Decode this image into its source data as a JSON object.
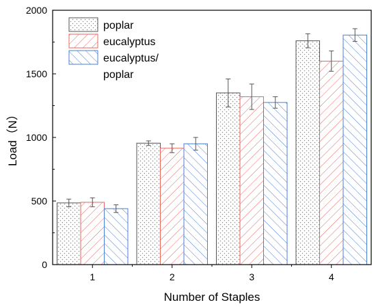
{
  "chart_data": {
    "type": "bar",
    "title": "",
    "xlabel": "Number of Staples",
    "ylabel": "Load（N）",
    "categories": [
      "1",
      "2",
      "3",
      "4"
    ],
    "ylim": [
      0,
      2000
    ],
    "yticks": [
      "0",
      "500",
      "1000",
      "1500",
      "2000"
    ],
    "grid": false,
    "legend_position": "top-left",
    "series": [
      {
        "name": "poplar",
        "legend_lines": [
          "poplar"
        ],
        "pattern": "dots",
        "color": "#555555",
        "values": [
          485,
          955,
          1350,
          1760
        ],
        "errors": [
          30,
          18,
          110,
          55
        ]
      },
      {
        "name": "eucalyptus",
        "legend_lines": [
          "eucalyptus"
        ],
        "pattern": "hatch-forward",
        "color": "#e8665f",
        "values": [
          490,
          915,
          1320,
          1600
        ],
        "errors": [
          35,
          35,
          100,
          80
        ]
      },
      {
        "name": "eucalyptus/ poplar",
        "legend_lines": [
          "eucalyptus/",
          "poplar"
        ],
        "pattern": "hatch-back",
        "color": "#4a7fd6",
        "values": [
          440,
          950,
          1275,
          1805
        ],
        "errors": [
          30,
          50,
          45,
          50
        ]
      }
    ]
  }
}
